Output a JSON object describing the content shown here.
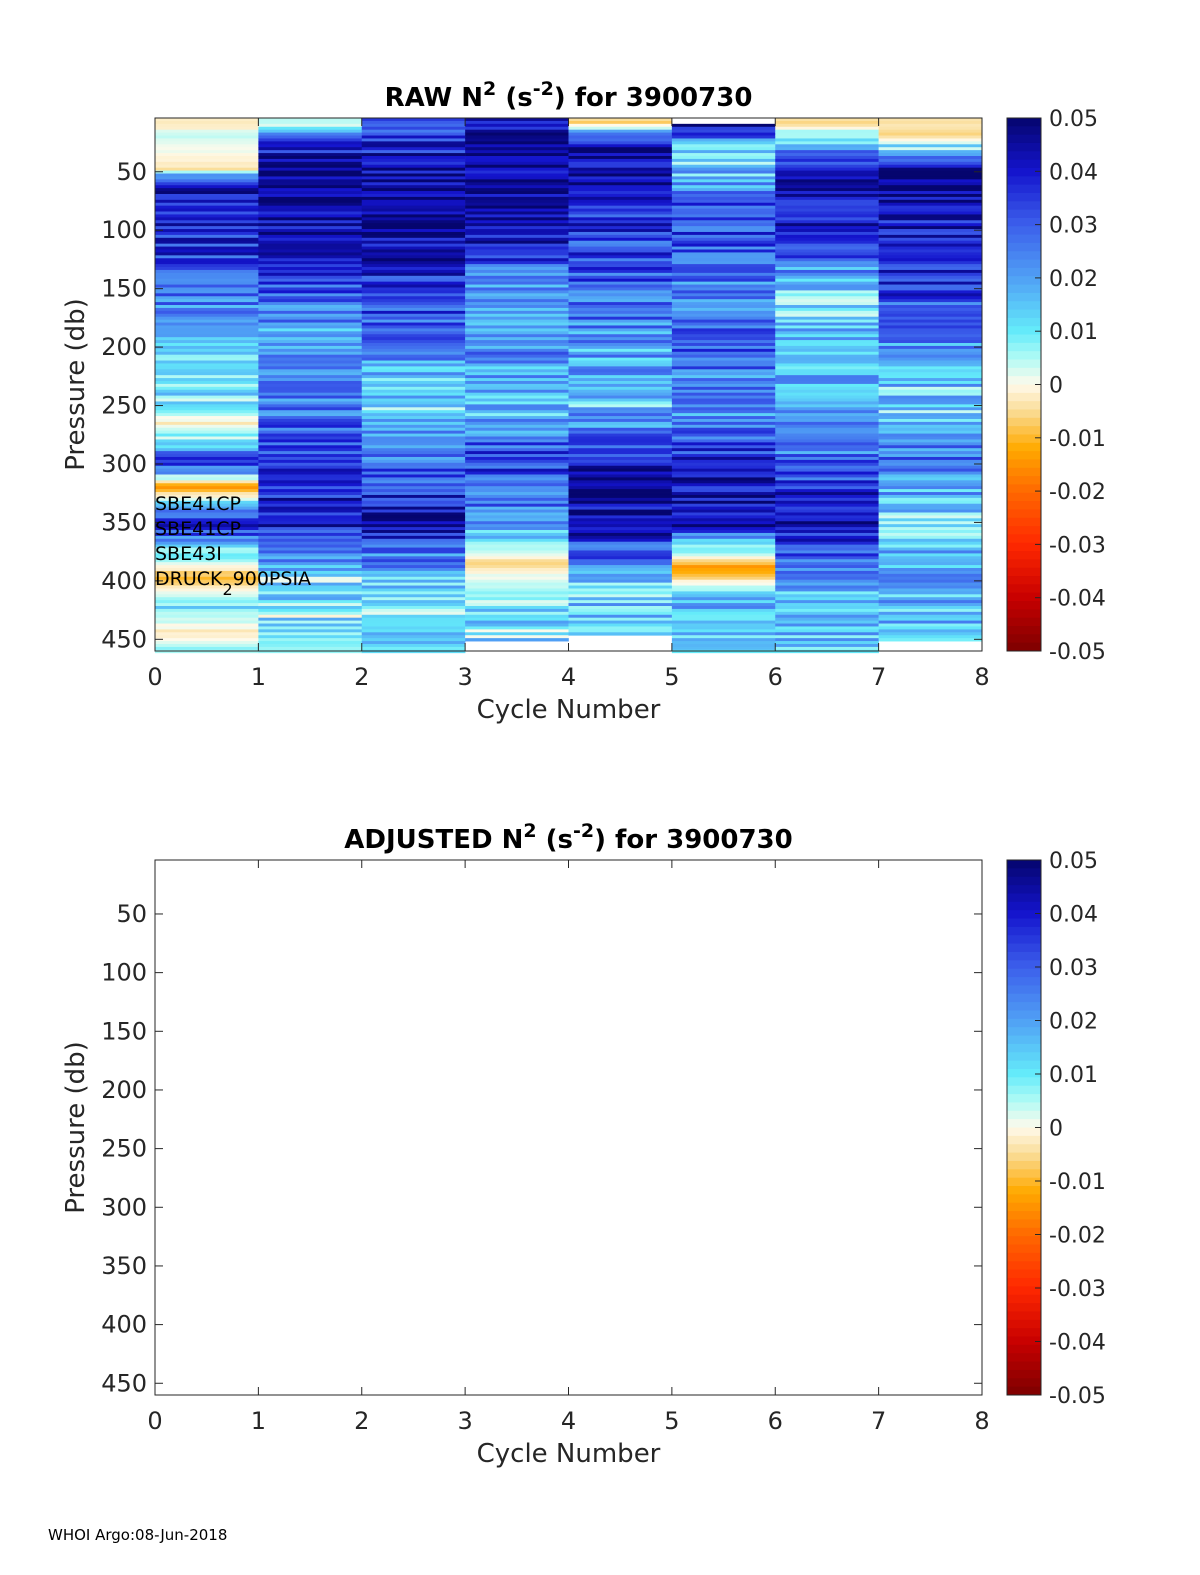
{
  "chart_data": [
    {
      "type": "heatmap",
      "title_parts": [
        "RAW N",
        "2",
        " (s",
        "-2",
        ") for 3900730"
      ],
      "xlabel": "Cycle Number",
      "ylabel": "Pressure (db)",
      "xlim": [
        0,
        8
      ],
      "ylim": [
        460,
        4
      ],
      "xticks": [
        "0",
        "1",
        "2",
        "3",
        "4",
        "5",
        "6",
        "7",
        "8"
      ],
      "yticks": [
        "50",
        "100",
        "150",
        "200",
        "250",
        "300",
        "350",
        "400",
        "450"
      ],
      "ytick_values": [
        50,
        100,
        150,
        200,
        250,
        300,
        350,
        400,
        450
      ],
      "cycles": [
        1,
        2,
        3,
        4,
        5,
        6,
        7,
        8
      ],
      "profile_bottom_db": [
        460,
        460,
        460,
        450,
        445,
        460,
        460,
        450
      ],
      "profile_top_db": [
        4,
        4,
        4,
        4,
        4,
        9,
        4,
        4
      ],
      "n2_profiles_approx": [
        {
          "cycle": 1,
          "pressure_db": [
            10,
            20,
            48,
            60,
            100,
            150,
            200,
            250,
            265,
            300,
            320,
            350,
            397,
            420,
            447,
            455
          ],
          "n2": [
            -0.002,
            0.003,
            -0.003,
            0.045,
            0.038,
            0.03,
            0.015,
            0.012,
            -0.003,
            0.035,
            -0.015,
            0.04,
            -0.01,
            0.01,
            -0.004,
            0.006
          ]
        },
        {
          "cycle": 2,
          "pressure_db": [
            10,
            25,
            60,
            100,
            150,
            200,
            250,
            300,
            350,
            400,
            450
          ],
          "n2": [
            0.003,
            0.04,
            0.046,
            0.045,
            0.03,
            0.018,
            0.025,
            0.035,
            0.042,
            0.01,
            0.008
          ]
        },
        {
          "cycle": 3,
          "pressure_db": [
            10,
            50,
            100,
            150,
            200,
            250,
            300,
            350,
            400,
            450
          ],
          "n2": [
            0.03,
            0.045,
            0.046,
            0.035,
            0.025,
            0.012,
            0.028,
            0.045,
            0.012,
            0.01
          ]
        },
        {
          "cycle": 4,
          "pressure_db": [
            10,
            50,
            100,
            150,
            200,
            250,
            300,
            350,
            385,
            420,
            445
          ],
          "n2": [
            0.045,
            0.046,
            0.045,
            0.02,
            0.025,
            0.015,
            0.035,
            0.02,
            -0.005,
            0.012,
            0.01
          ]
        },
        {
          "cycle": 5,
          "pressure_db": [
            8,
            30,
            100,
            150,
            200,
            250,
            300,
            350,
            400,
            440
          ],
          "n2": [
            -0.006,
            0.045,
            0.035,
            0.03,
            0.02,
            0.015,
            0.042,
            0.045,
            0.015,
            0.012
          ]
        },
        {
          "cycle": 6,
          "pressure_db": [
            12,
            35,
            80,
            120,
            150,
            200,
            250,
            300,
            350,
            389,
            420,
            455
          ],
          "n2": [
            0.045,
            0.005,
            0.035,
            0.03,
            0.025,
            0.03,
            0.02,
            0.04,
            0.045,
            -0.015,
            0.02,
            0.01
          ]
        },
        {
          "cycle": 7,
          "pressure_db": [
            8,
            50,
            100,
            160,
            200,
            250,
            300,
            350,
            400,
            455
          ],
          "n2": [
            -0.005,
            0.045,
            0.04,
            0.008,
            0.02,
            0.015,
            0.03,
            0.045,
            0.02,
            0.015
          ]
        },
        {
          "cycle": 8,
          "pressure_db": [
            10,
            18,
            50,
            100,
            150,
            200,
            250,
            300,
            345,
            400,
            445
          ],
          "n2": [
            -0.004,
            -0.008,
            0.046,
            0.04,
            0.035,
            0.02,
            0.012,
            0.03,
            0.01,
            0.02,
            0.015
          ]
        }
      ],
      "annotations": [
        {
          "text": "SBE41CP"
        },
        {
          "text": "SBE41CP"
        },
        {
          "text": "SBE43I"
        },
        {
          "text_parts": [
            "DRUCK",
            "2",
            "900PSIA"
          ]
        }
      ],
      "colorbar": {
        "colormap": "diverging dark-red / orange / cream / cyan / blue / navy",
        "range": [
          -0.05,
          0.05
        ],
        "ticks": [
          "0.05",
          "0.04",
          "0.03",
          "0.02",
          "0.01",
          "0",
          "-0.01",
          "-0.02",
          "-0.03",
          "-0.04",
          "-0.05"
        ]
      },
      "grid": false
    },
    {
      "type": "heatmap",
      "title_parts": [
        "ADJUSTED N",
        "2",
        " (s",
        "-2",
        ") for 3900730"
      ],
      "xlabel": "Cycle Number",
      "ylabel": "Pressure (db)",
      "xlim": [
        0,
        8
      ],
      "ylim": [
        460,
        4
      ],
      "xticks": [
        "0",
        "1",
        "2",
        "3",
        "4",
        "5",
        "6",
        "7",
        "8"
      ],
      "yticks": [
        "50",
        "100",
        "150",
        "200",
        "250",
        "300",
        "350",
        "400",
        "450"
      ],
      "ytick_values": [
        50,
        100,
        150,
        200,
        250,
        300,
        350,
        400,
        450
      ],
      "n2_profiles_approx": [],
      "colorbar": {
        "colormap": "diverging dark-red / orange / cream / cyan / blue / navy",
        "range": [
          -0.05,
          0.05
        ],
        "ticks": [
          "0.05",
          "0.04",
          "0.03",
          "0.02",
          "0.01",
          "0",
          "-0.01",
          "-0.02",
          "-0.03",
          "-0.04",
          "-0.05"
        ]
      },
      "grid": false
    }
  ],
  "footer": "WHOI Argo:08-Jun-2018"
}
